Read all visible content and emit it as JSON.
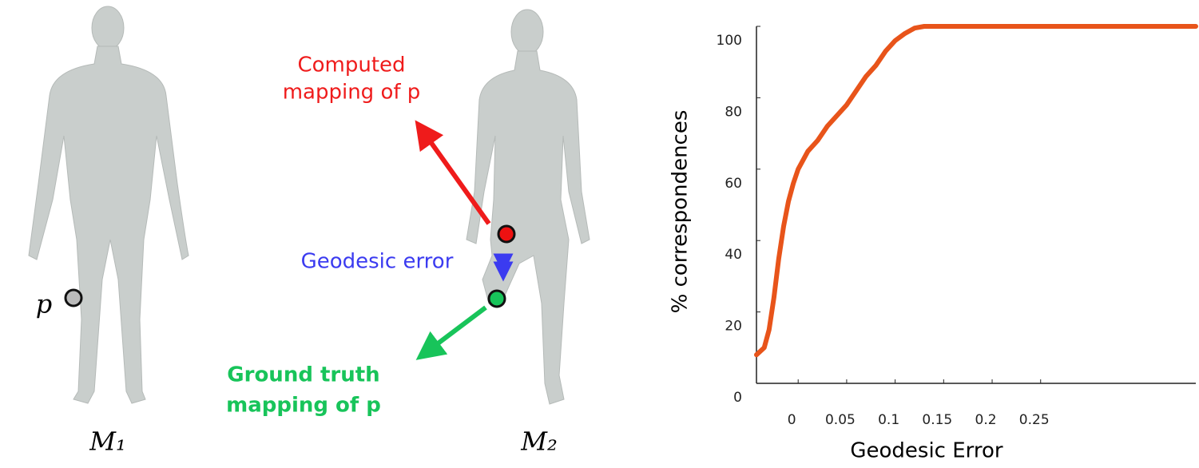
{
  "diagram": {
    "point_label": "p",
    "shape1": "M₁",
    "shape2": "M₂",
    "computed": [
      "Computed",
      "mapping of p"
    ],
    "error": "Geodesic error",
    "truth": [
      "Ground truth",
      "mapping of p"
    ]
  },
  "chart_data": {
    "type": "line",
    "x_label": "Geodesic Error",
    "y_label": "% correspondences",
    "x": [
      -0.043,
      -0.035,
      -0.03,
      -0.025,
      -0.02,
      -0.015,
      -0.01,
      -0.005,
      0,
      0.01,
      0.02,
      0.03,
      0.04,
      0.05,
      0.06,
      0.07,
      0.08,
      0.09,
      0.1,
      0.11,
      0.12,
      0.13,
      0.2,
      0.3,
      0.41
    ],
    "series": [
      {
        "name": "Geodesic error",
        "color": "#e8541a",
        "values": [
          8,
          10,
          15,
          24,
          35,
          44,
          51,
          56,
          60,
          65,
          68,
          72,
          75,
          78,
          82,
          86,
          89,
          93,
          96,
          98,
          99.5,
          100,
          100,
          100,
          100
        ]
      }
    ],
    "xlim": [
      -0.043,
      0.41
    ],
    "ylim": [
      0,
      100
    ],
    "xticks": [
      0,
      0.05,
      0.1,
      0.15,
      0.2,
      0.25
    ],
    "yticks": [
      0,
      20,
      40,
      60,
      80,
      100
    ]
  }
}
